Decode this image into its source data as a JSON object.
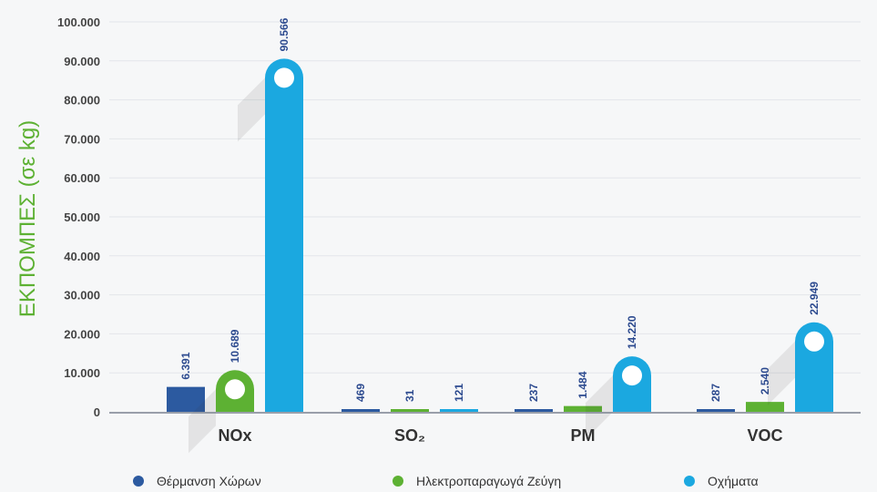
{
  "chart_data": {
    "type": "bar",
    "ylabel": "ΕΚΠΟΜΠΕΣ (σε kg)",
    "ylim": [
      0,
      100000
    ],
    "yticks": [
      "0",
      "10.000",
      "20.000",
      "30.000",
      "40.000",
      "50.000",
      "60.000",
      "70.000",
      "80.000",
      "90.000",
      "100.000"
    ],
    "categories": [
      "NOx",
      "SO₂",
      "PM",
      "VOC"
    ],
    "series": [
      {
        "name": "Θέρμανση Χώρων",
        "color": "#2c5aa0",
        "values": [
          6391,
          469,
          237,
          287
        ],
        "labels": [
          "6.391",
          "469",
          "237",
          "287"
        ]
      },
      {
        "name": "Ηλεκτροπαραγωγά Ζεύγη",
        "color": "#5db133",
        "values": [
          10689,
          31,
          1484,
          2540
        ],
        "labels": [
          "10.689",
          "31",
          "1.484",
          "2.540"
        ]
      },
      {
        "name": "Οχήματα",
        "color": "#1ba8e0",
        "values": [
          90566,
          121,
          14220,
          22949
        ],
        "labels": [
          "90.566",
          "121",
          "14.220",
          "22.949"
        ]
      }
    ],
    "legend_position": "bottom",
    "label_color": "#2c4a8f",
    "ylabel_color": "#5db133"
  }
}
